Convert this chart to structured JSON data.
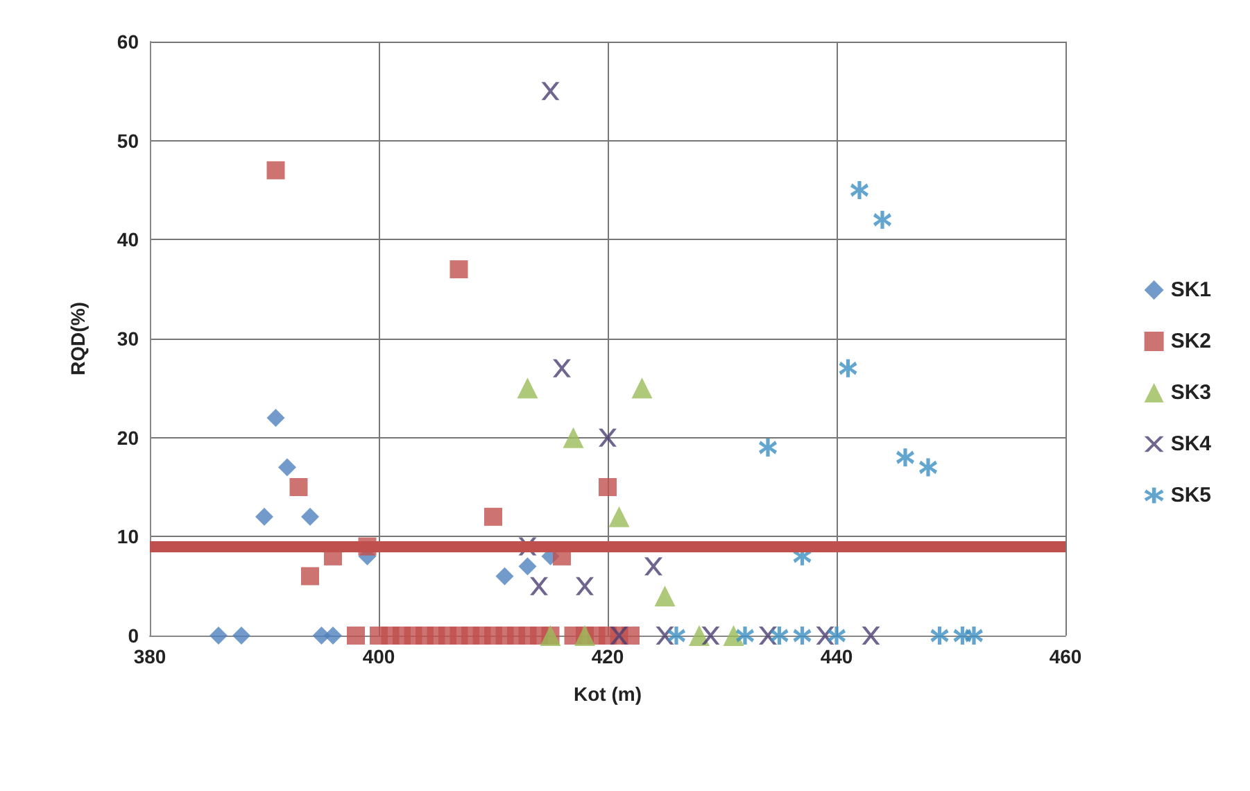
{
  "chart_data": {
    "type": "scatter",
    "xlabel": "Kot (m)",
    "ylabel": "RQD(%)",
    "xlim": [
      380,
      460
    ],
    "xticks": [
      380,
      400,
      420,
      440,
      460
    ],
    "ylim": [
      0,
      60
    ],
    "yticks": [
      0,
      10,
      20,
      30,
      40,
      50,
      60
    ],
    "grid": true,
    "legend": "right",
    "series": [
      {
        "name": "SK1",
        "color": "#4f81bd",
        "marker": "diamond",
        "x": [
          391,
          392,
          390,
          394,
          399,
          411,
          413,
          415,
          386,
          388,
          395,
          396
        ],
        "values": [
          22,
          17,
          12,
          12,
          8,
          6,
          7,
          8,
          0,
          0,
          0,
          0
        ]
      },
      {
        "name": "SK2",
        "color": "#c0504d",
        "marker": "square",
        "x": [
          391,
          407,
          393,
          394,
          396,
          399,
          410,
          420,
          416,
          398,
          400,
          401,
          402,
          403,
          404,
          405,
          406,
          407,
          408,
          409,
          410,
          411,
          412,
          413,
          414,
          415,
          417,
          418,
          419,
          420,
          421,
          422
        ],
        "values": [
          47,
          37,
          15,
          6,
          8,
          9,
          12,
          15,
          8,
          0,
          0,
          0,
          0,
          0,
          0,
          0,
          0,
          0,
          0,
          0,
          0,
          0,
          0,
          0,
          0,
          0,
          0,
          0,
          0,
          0,
          0,
          0
        ]
      },
      {
        "name": "SK3",
        "color": "#9bbb59",
        "marker": "triangle",
        "x": [
          413,
          423,
          417,
          421,
          425,
          415,
          418,
          428,
          431
        ],
        "values": [
          25,
          25,
          20,
          12,
          4,
          0,
          0,
          0,
          0
        ]
      },
      {
        "name": "SK4",
        "color": "#4b3f72",
        "marker": "cross",
        "x": [
          415,
          416,
          420,
          424,
          414,
          418,
          413,
          421,
          425,
          429,
          434,
          439,
          443
        ],
        "values": [
          55,
          27,
          20,
          7,
          5,
          5,
          9,
          0,
          0,
          0,
          0,
          0,
          0
        ]
      },
      {
        "name": "SK5",
        "color": "#3b8ec2",
        "marker": "star",
        "x": [
          442,
          444,
          441,
          434,
          446,
          448,
          437,
          426,
          432,
          435,
          437,
          440,
          449,
          451,
          452
        ],
        "values": [
          45,
          42,
          27,
          19,
          18,
          17,
          8,
          0,
          0,
          0,
          0,
          0,
          0,
          0,
          0
        ]
      }
    ],
    "ref_lines": [
      {
        "axis": "y",
        "value": 9,
        "color": "#c0504d"
      }
    ]
  }
}
